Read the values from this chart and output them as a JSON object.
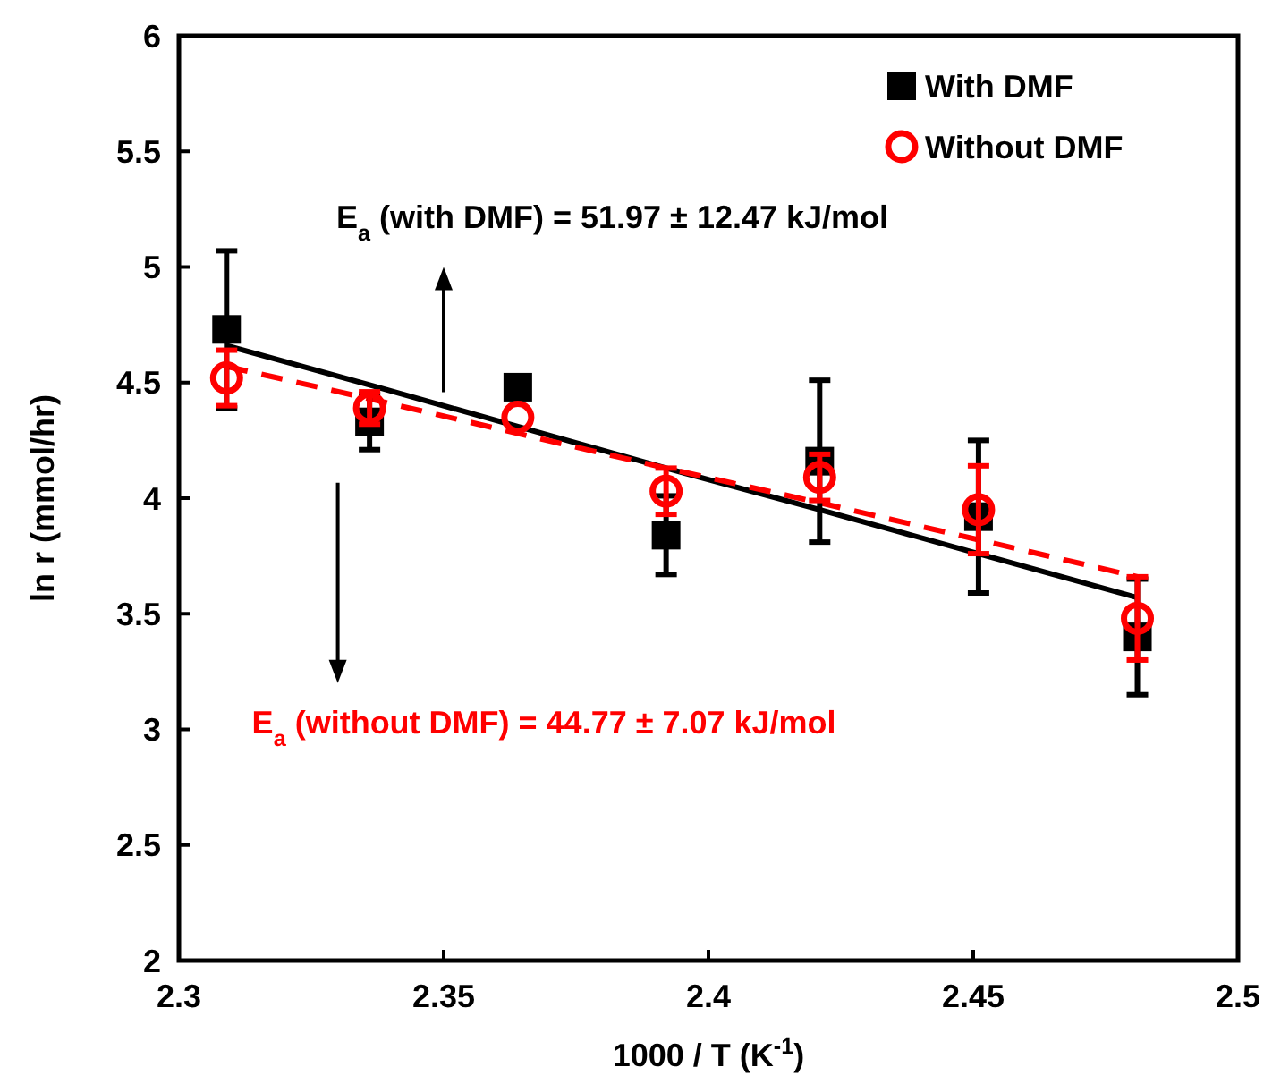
{
  "chart_data": {
    "type": "scatter",
    "xlabel": "1000 / T (K$^{-1}$)",
    "ylabel": "ln r (mmol/hr)",
    "x": [
      2.309,
      2.336,
      2.364,
      2.392,
      2.421,
      2.451,
      2.481
    ],
    "xlim": [
      2.3,
      2.5
    ],
    "xticks": [
      2.3,
      2.35,
      2.4,
      2.45,
      2.5
    ],
    "ylim": [
      2,
      6
    ],
    "yticks": [
      2,
      2.5,
      3,
      3.5,
      4,
      4.5,
      5,
      5.5,
      6
    ],
    "grid": false,
    "legend": "top right",
    "series": [
      {
        "name": "With DMF",
        "color": "#000000",
        "marker": "square",
        "values": [
          4.73,
          4.33,
          4.48,
          3.84,
          4.16,
          3.92,
          3.4
        ],
        "errors": [
          0.34,
          0.12,
          null,
          0.17,
          0.35,
          0.33,
          0.25
        ]
      },
      {
        "name": "Without DMF",
        "color": "#ff0000",
        "marker": "circle",
        "values": [
          4.52,
          4.39,
          4.35,
          4.03,
          4.09,
          3.95,
          3.48
        ],
        "errors": [
          0.12,
          0.07,
          null,
          0.1,
          0.1,
          0.19,
          0.18
        ]
      },
      {
        "type": "line",
        "color": "#000000",
        "line_style": "solid",
        "marker": "none",
        "values": [
          4.66,
          4.49,
          4.31,
          4.13,
          3.95,
          3.76,
          3.57
        ]
      },
      {
        "type": "line",
        "color": "#ff0000",
        "line_style": "dashed",
        "marker": "none",
        "values": [
          4.57,
          4.43,
          4.28,
          4.13,
          3.98,
          3.82,
          3.66
        ]
      }
    ],
    "annotations": [
      "E$_{a}$ (with DMF) = 51.97 ± 12.47 kJ/mol",
      "E$_{a}$ (without DMF) = 44.77 ± 7.07 kJ/mol"
    ]
  }
}
